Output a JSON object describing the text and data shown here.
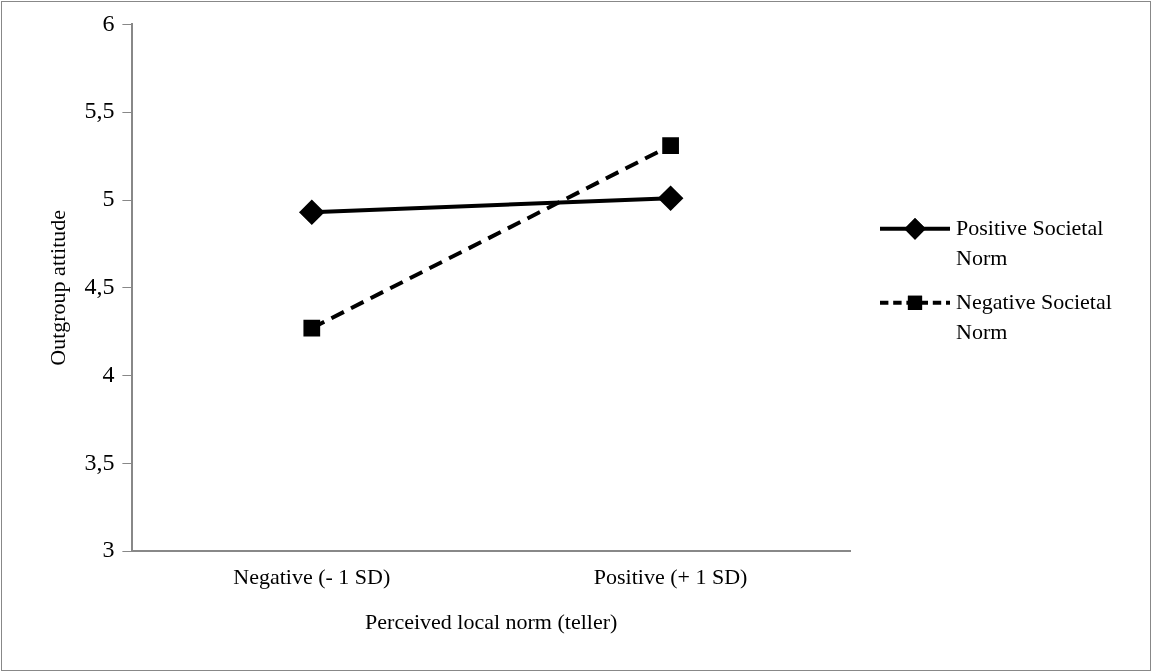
{
  "chart_data": {
    "type": "line",
    "xlabel": "Perceived local norm (teller)",
    "ylabel": "Outgroup attitude",
    "categories": [
      "Negative (- 1 SD)",
      "Positive (+ 1 SD)"
    ],
    "series": [
      {
        "name": "Positive Societal Norm",
        "color": "#000000",
        "values": [
          4.93,
          5.01
        ],
        "marker": "diamond",
        "line_style": "solid"
      },
      {
        "name": "Negative Societal Norm",
        "color": "#000000",
        "values": [
          4.27,
          5.31
        ],
        "marker": "square",
        "line_style": "dashed"
      }
    ],
    "ylim": [
      3,
      6
    ],
    "yticks": [
      3,
      {
        "value": 3.5,
        "label": "3,5"
      },
      4,
      {
        "value": 4.5,
        "label": "4,5"
      },
      5,
      {
        "value": 5.5,
        "label": "5,5"
      },
      6
    ],
    "grid": false,
    "legend": "right"
  }
}
